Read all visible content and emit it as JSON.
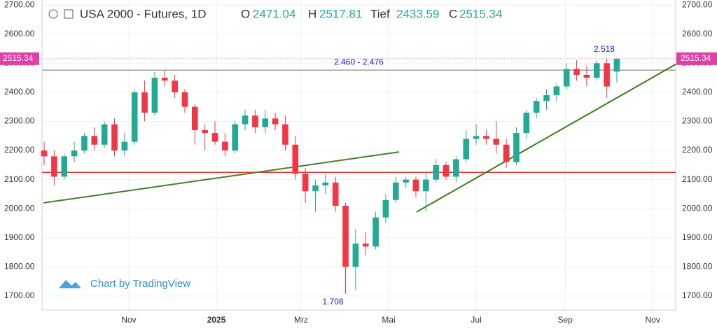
{
  "chart_data": {
    "type": "candlestick",
    "title": "USA 2000 - Futures, 1D",
    "ohlc_header": {
      "open_label": "O",
      "open": "2471.04",
      "high_label": "H",
      "high": "2517.81",
      "low_label": "Tief",
      "low": "2433.59",
      "close_label": "C",
      "close": "2515.34"
    },
    "x": [
      2,
      9,
      16,
      23,
      30,
      37,
      44,
      51,
      58,
      65,
      72,
      79,
      86,
      93,
      100,
      107,
      114,
      121,
      128,
      135,
      142,
      149,
      156,
      163,
      170,
      177,
      184,
      191,
      198,
      205,
      212,
      219,
      226,
      233,
      240,
      247,
      254,
      261,
      268,
      275,
      282,
      289,
      296,
      303,
      310,
      317,
      324,
      331,
      338,
      345,
      352,
      359,
      366,
      373,
      380,
      387,
      394,
      401
    ],
    "open": [
      2200,
      2180,
      2110,
      2180,
      2200,
      2250,
      2220,
      2290,
      2200,
      2230,
      2400,
      2330,
      2450,
      2440,
      2400,
      2350,
      2270,
      2260,
      2230,
      2200,
      2290,
      2320,
      2280,
      2310,
      2290,
      2220,
      2120,
      2060,
      2080,
      2090,
      2010,
      1800,
      1880,
      1870,
      1970,
      2030,
      2090,
      2100,
      2060,
      2100,
      2150,
      2110,
      2170,
      2240,
      2250,
      2240,
      2220,
      2160,
      2260,
      2330,
      2370,
      2390,
      2420,
      2480,
      2460,
      2450,
      2500,
      2471.04
    ],
    "high": [
      2230,
      2200,
      2190,
      2230,
      2260,
      2280,
      2300,
      2310,
      2260,
      2410,
      2440,
      2470,
      2475,
      2460,
      2410,
      2360,
      2290,
      2300,
      2260,
      2300,
      2340,
      2340,
      2340,
      2330,
      2320,
      2250,
      2140,
      2100,
      2120,
      2110,
      2020,
      1930,
      1920,
      1990,
      2050,
      2110,
      2110,
      2110,
      2120,
      2170,
      2160,
      2180,
      2270,
      2290,
      2270,
      2300,
      2240,
      2280,
      2340,
      2380,
      2410,
      2430,
      2500,
      2510,
      2490,
      2510,
      2518,
      2517.81
    ],
    "low": [
      2150,
      2080,
      2100,
      2160,
      2190,
      2200,
      2210,
      2180,
      2180,
      2220,
      2300,
      2320,
      2420,
      2380,
      2330,
      2220,
      2200,
      2220,
      2180,
      2190,
      2270,
      2260,
      2260,
      2270,
      2200,
      2100,
      2020,
      1990,
      2050,
      1990,
      1708,
      1720,
      1840,
      1860,
      1950,
      2020,
      2070,
      2040,
      1990,
      2090,
      2100,
      2090,
      2160,
      2220,
      2220,
      2190,
      2140,
      2150,
      2240,
      2310,
      2340,
      2370,
      2410,
      2440,
      2420,
      2440,
      2380,
      2433.59
    ],
    "close": [
      2180,
      2110,
      2180,
      2200,
      2250,
      2220,
      2290,
      2200,
      2230,
      2400,
      2330,
      2450,
      2440,
      2400,
      2350,
      2270,
      2260,
      2230,
      2200,
      2290,
      2320,
      2280,
      2310,
      2290,
      2220,
      2120,
      2060,
      2080,
      2090,
      2010,
      1800,
      1880,
      1870,
      1970,
      2030,
      2090,
      2100,
      2060,
      2100,
      2150,
      2110,
      2170,
      2240,
      2250,
      2240,
      2220,
      2160,
      2260,
      2330,
      2370,
      2390,
      2420,
      2480,
      2460,
      2450,
      2500,
      2420,
      2515.34
    ],
    "up_color": "#22ab94",
    "down_color": "#f23645",
    "xlim": [
      0.5,
      442
    ],
    "ylim": [
      1652,
      2717
    ],
    "xticks": [
      {
        "value": 61,
        "label": "Nov"
      },
      {
        "value": 122,
        "label": "2025"
      },
      {
        "value": 181,
        "label": "Mrz"
      },
      {
        "value": 242,
        "label": "Mai"
      },
      {
        "value": 303,
        "label": "Jul"
      },
      {
        "value": 365,
        "label": "Sep"
      },
      {
        "value": 426,
        "label": "Nov"
      }
    ],
    "yticks": [
      {
        "value": 1700,
        "label": "1700.00"
      },
      {
        "value": 1800,
        "label": "1800.00"
      },
      {
        "value": 1900,
        "label": "1900.00"
      },
      {
        "value": 2000,
        "label": "2000.00"
      },
      {
        "value": 2100,
        "label": "2100.00"
      },
      {
        "value": 2200,
        "label": "2200.00"
      },
      {
        "value": 2300,
        "label": "2300.00"
      },
      {
        "value": 2400,
        "label": "2400.00"
      },
      {
        "value": 2500,
        "label": "2500.00"
      },
      {
        "value": 2600,
        "label": "2600.00"
      },
      {
        "value": 2700,
        "label": "2700.00"
      }
    ],
    "grid": true,
    "levels": [
      {
        "value": 2476,
        "color": "#9e9e9e",
        "label": "2.460 - 2.476"
      },
      {
        "value": 2125,
        "color": "#e53935"
      }
    ],
    "trendlines": [
      {
        "x": [
          1.5,
          249.3
        ],
        "y": [
          2020,
          2195
        ],
        "color": "#4a7d2a"
      },
      {
        "x": [
          261.5,
          442
        ],
        "y": [
          1989,
          2496
        ],
        "color": "#3d7a22"
      }
    ],
    "annotations": [
      {
        "text": "2.518",
        "x": 401,
        "y": 2518
      },
      {
        "text": "1.708",
        "x": 212,
        "y": 1708
      }
    ],
    "watermark": "Chart by TradingView"
  }
}
